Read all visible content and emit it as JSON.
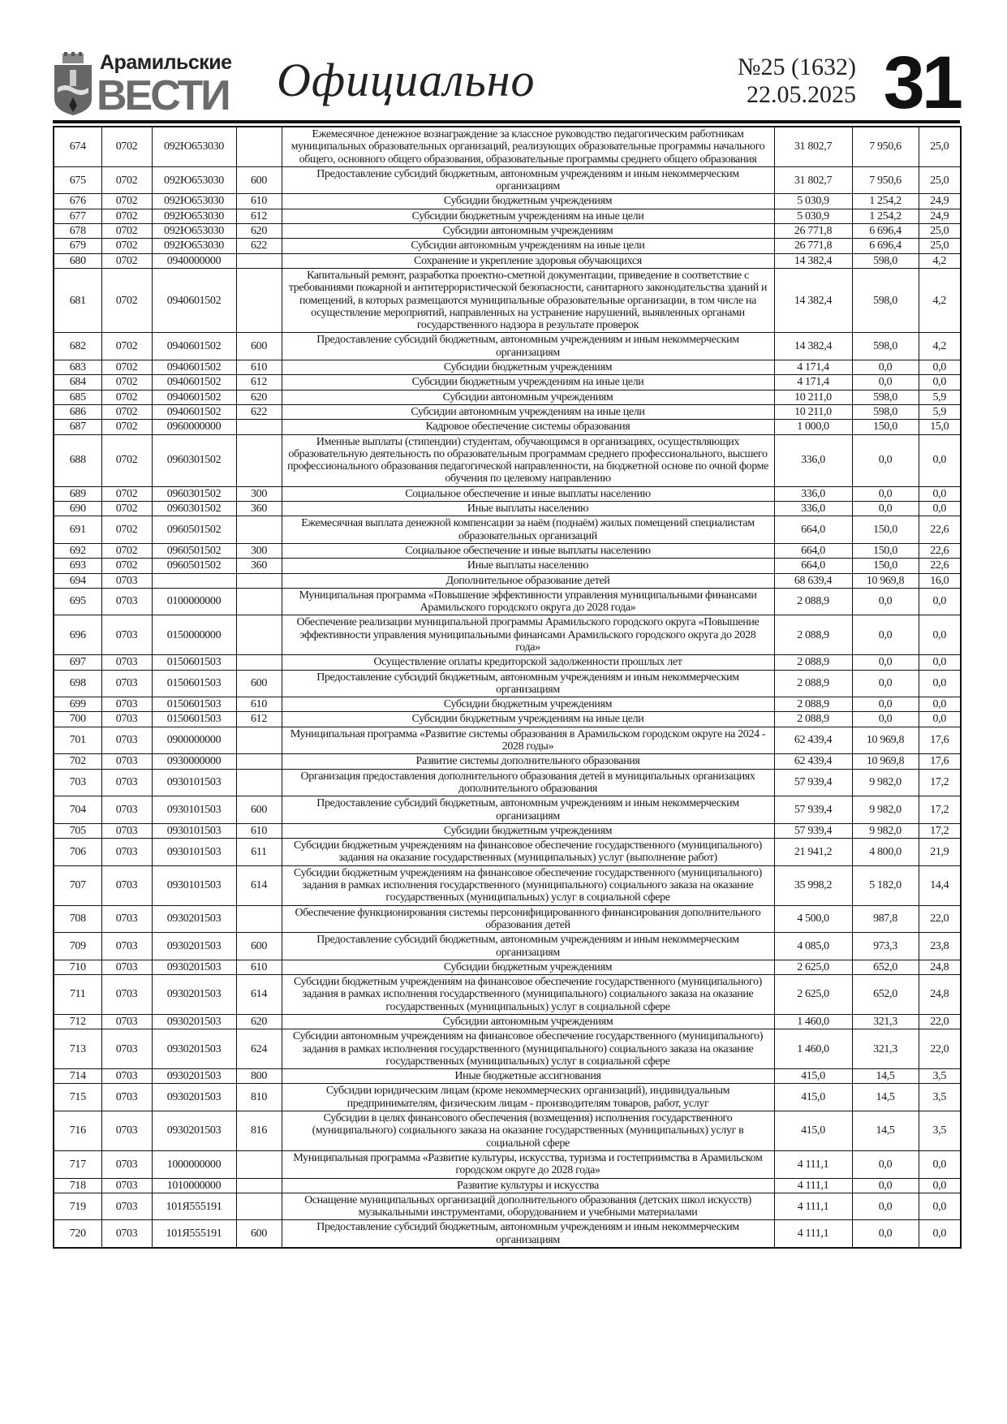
{
  "header": {
    "logo_line1": "Арамильские",
    "logo_line2": "ВЕСТИ",
    "section": "Официально",
    "issue": "№25 (1632)",
    "date": "22.05.2025",
    "page_number": "31"
  },
  "table": {
    "rows": [
      [
        "674",
        "0702",
        "092Ю653030",
        "",
        "Ежемесячное денежное вознаграждение за классное руководство педагогическим работникам муниципальных образовательных организаций, реализующих образовательные программы начального общего, основного общего образования, образовательные программы среднего общего образования",
        "31 802,7",
        "7 950,6",
        "25,0"
      ],
      [
        "675",
        "0702",
        "092Ю653030",
        "600",
        "Предоставление субсидий бюджетным, автономным учреждениям и иным некоммерческим организациям",
        "31 802,7",
        "7 950,6",
        "25,0"
      ],
      [
        "676",
        "0702",
        "092Ю653030",
        "610",
        "Субсидии бюджетным учреждениям",
        "5 030,9",
        "1 254,2",
        "24,9"
      ],
      [
        "677",
        "0702",
        "092Ю653030",
        "612",
        "Субсидии бюджетным учреждениям на иные цели",
        "5 030,9",
        "1 254,2",
        "24,9"
      ],
      [
        "678",
        "0702",
        "092Ю653030",
        "620",
        "Субсидии автономным учреждениям",
        "26 771,8",
        "6 696,4",
        "25,0"
      ],
      [
        "679",
        "0702",
        "092Ю653030",
        "622",
        "Субсидии автономным учреждениям на иные цели",
        "26 771,8",
        "6 696,4",
        "25,0"
      ],
      [
        "680",
        "0702",
        "0940000000",
        "",
        "Сохранение и укрепление здоровья обучающихся",
        "14 382,4",
        "598,0",
        "4,2"
      ],
      [
        "681",
        "0702",
        "0940601502",
        "",
        "Капитальный ремонт, разработка проектно-сметной документации, приведение в соответствие с требованиями пожарной и антитеррористической безопасности, санитарного законодательства зданий и помещений, в которых размещаются муниципальные образовательные организации, в том числе на осуществление мероприятий, направленных на устранение нарушений, выявленных органами государственного надзора в результате проверок",
        "14 382,4",
        "598,0",
        "4,2"
      ],
      [
        "682",
        "0702",
        "0940601502",
        "600",
        "Предоставление субсидий бюджетным, автономным учреждениям и иным некоммерческим организациям",
        "14 382,4",
        "598,0",
        "4,2"
      ],
      [
        "683",
        "0702",
        "0940601502",
        "610",
        "Субсидии бюджетным учреждениям",
        "4 171,4",
        "0,0",
        "0,0"
      ],
      [
        "684",
        "0702",
        "0940601502",
        "612",
        "Субсидии бюджетным учреждениям на иные цели",
        "4 171,4",
        "0,0",
        "0,0"
      ],
      [
        "685",
        "0702",
        "0940601502",
        "620",
        "Субсидии автономным учреждениям",
        "10 211,0",
        "598,0",
        "5,9"
      ],
      [
        "686",
        "0702",
        "0940601502",
        "622",
        "Субсидии автономным учреждениям на иные цели",
        "10 211,0",
        "598,0",
        "5,9"
      ],
      [
        "687",
        "0702",
        "0960000000",
        "",
        "Кадровое обеспечение системы образования",
        "1 000,0",
        "150,0",
        "15,0"
      ],
      [
        "688",
        "0702",
        "0960301502",
        "",
        "Именные выплаты (стипендии) студентам, обучающимся в организациях, осуществляющих образовательную деятельность по образовательным программам среднего профессионального, высшего профессионального образования педагогической направленности, на бюджетной основе по очной форме обучения по целевому направлению",
        "336,0",
        "0,0",
        "0,0"
      ],
      [
        "689",
        "0702",
        "0960301502",
        "300",
        "Социальное обеспечение и иные выплаты населению",
        "336,0",
        "0,0",
        "0,0"
      ],
      [
        "690",
        "0702",
        "0960301502",
        "360",
        "Иные выплаты населению",
        "336,0",
        "0,0",
        "0,0"
      ],
      [
        "691",
        "0702",
        "0960501502",
        "",
        "Ежемесячная выплата денежной компенсации за наём (поднаём) жилых помещений специалистам образовательных организаций",
        "664,0",
        "150,0",
        "22,6"
      ],
      [
        "692",
        "0702",
        "0960501502",
        "300",
        "Социальное обеспечение и иные выплаты населению",
        "664,0",
        "150,0",
        "22,6"
      ],
      [
        "693",
        "0702",
        "0960501502",
        "360",
        "Иные выплаты населению",
        "664,0",
        "150,0",
        "22,6"
      ],
      [
        "694",
        "0703",
        "",
        "",
        "Дополнительное образование детей",
        "68 639,4",
        "10 969,8",
        "16,0"
      ],
      [
        "695",
        "0703",
        "0100000000",
        "",
        "Муниципальная программа «Повышение эффективности управления муниципальными финансами Арамильского городского округа до 2028 года»",
        "2 088,9",
        "0,0",
        "0,0"
      ],
      [
        "696",
        "0703",
        "0150000000",
        "",
        "Обеспечение реализации муниципальной программы Арамильского городского округа «Повышение эффективности управления муниципальными финансами Арамильского городского округа до 2028 года»",
        "2 088,9",
        "0,0",
        "0,0"
      ],
      [
        "697",
        "0703",
        "0150601503",
        "",
        "Осуществление оплаты кредиторской задолженности прошлых лет",
        "2 088,9",
        "0,0",
        "0,0"
      ],
      [
        "698",
        "0703",
        "0150601503",
        "600",
        "Предоставление субсидий бюджетным, автономным учреждениям и иным некоммерческим организациям",
        "2 088,9",
        "0,0",
        "0,0"
      ],
      [
        "699",
        "0703",
        "0150601503",
        "610",
        "Субсидии бюджетным учреждениям",
        "2 088,9",
        "0,0",
        "0,0"
      ],
      [
        "700",
        "0703",
        "0150601503",
        "612",
        "Субсидии бюджетным учреждениям на иные цели",
        "2 088,9",
        "0,0",
        "0,0"
      ],
      [
        "701",
        "0703",
        "0900000000",
        "",
        "Муниципальная программа «Развитие системы образования в Арамильском городском округе на 2024 - 2028 годы»",
        "62 439,4",
        "10 969,8",
        "17,6"
      ],
      [
        "702",
        "0703",
        "0930000000",
        "",
        "Развитие системы дополнительного образования",
        "62 439,4",
        "10 969,8",
        "17,6"
      ],
      [
        "703",
        "0703",
        "0930101503",
        "",
        "Организация предоставления дополнительного образования детей в муниципальных организациях дополнительного образования",
        "57 939,4",
        "9 982,0",
        "17,2"
      ],
      [
        "704",
        "0703",
        "0930101503",
        "600",
        "Предоставление субсидий бюджетным, автономным учреждениям и иным некоммерческим организациям",
        "57 939,4",
        "9 982,0",
        "17,2"
      ],
      [
        "705",
        "0703",
        "0930101503",
        "610",
        "Субсидии бюджетным учреждениям",
        "57 939,4",
        "9 982,0",
        "17,2"
      ],
      [
        "706",
        "0703",
        "0930101503",
        "611",
        "Субсидии бюджетным учреждениям на финансовое обеспечение государственного (муниципального) задания на оказание государственных (муниципальных) услуг (выполнение работ)",
        "21 941,2",
        "4 800,0",
        "21,9"
      ],
      [
        "707",
        "0703",
        "0930101503",
        "614",
        "Субсидии бюджетным учреждениям на финансовое обеспечение государственного (муниципального) задания в рамках исполнения государственного (муниципального) социального заказа на оказание государственных (муниципальных) услуг в социальной сфере",
        "35 998,2",
        "5 182,0",
        "14,4"
      ],
      [
        "708",
        "0703",
        "0930201503",
        "",
        "Обеспечение функционирования системы персонифицированного финансирования дополнительного образования детей",
        "4 500,0",
        "987,8",
        "22,0"
      ],
      [
        "709",
        "0703",
        "0930201503",
        "600",
        "Предоставление субсидий бюджетным, автономным учреждениям и иным некоммерческим организациям",
        "4 085,0",
        "973,3",
        "23,8"
      ],
      [
        "710",
        "0703",
        "0930201503",
        "610",
        "Субсидии бюджетным учреждениям",
        "2 625,0",
        "652,0",
        "24,8"
      ],
      [
        "711",
        "0703",
        "0930201503",
        "614",
        "Субсидии бюджетным учреждениям на финансовое обеспечение государственного (муниципального) задания в рамках исполнения государственного (муниципального) социального заказа на оказание государственных (муниципальных) услуг в социальной сфере",
        "2 625,0",
        "652,0",
        "24,8"
      ],
      [
        "712",
        "0703",
        "0930201503",
        "620",
        "Субсидии автономным учреждениям",
        "1 460,0",
        "321,3",
        "22,0"
      ],
      [
        "713",
        "0703",
        "0930201503",
        "624",
        "Субсидии автономным учреждениям на финансовое обеспечение государственного (муниципального) задания в рамках исполнения государственного (муниципального) социального заказа на оказание государственных (муниципальных) услуг в социальной сфере",
        "1 460,0",
        "321,3",
        "22,0"
      ],
      [
        "714",
        "0703",
        "0930201503",
        "800",
        "Иные бюджетные ассигнования",
        "415,0",
        "14,5",
        "3,5"
      ],
      [
        "715",
        "0703",
        "0930201503",
        "810",
        "Субсидии юридическим лицам (кроме некоммерческих организаций), индивидуальным предпринимателям, физическим лицам - производителям товаров, работ, услуг",
        "415,0",
        "14,5",
        "3,5"
      ],
      [
        "716",
        "0703",
        "0930201503",
        "816",
        "Субсидии в целях финансового обеспечения (возмещения) исполнения государственного (муниципального) социального заказа на оказание государственных (муниципальных) услуг в социальной сфере",
        "415,0",
        "14,5",
        "3,5"
      ],
      [
        "717",
        "0703",
        "1000000000",
        "",
        "Муниципальная программа «Развитие культуры, искусства, туризма и гостеприимства в Арамильском городском округе до 2028 года»",
        "4 111,1",
        "0,0",
        "0,0"
      ],
      [
        "718",
        "0703",
        "1010000000",
        "",
        "Развитие культуры и искусства",
        "4 111,1",
        "0,0",
        "0,0"
      ],
      [
        "719",
        "0703",
        "101Я555191",
        "",
        "Оснащение муниципальных организаций дополнительного образования (детских школ искусств) музыкальными инструментами, оборудованием и учебными материалами",
        "4 111,1",
        "0,0",
        "0,0"
      ],
      [
        "720",
        "0703",
        "101Я555191",
        "600",
        "Предоставление субсидий бюджетным, автономным учреждениям и иным некоммерческим организациям",
        "4 111,1",
        "0,0",
        "0,0"
      ]
    ]
  }
}
